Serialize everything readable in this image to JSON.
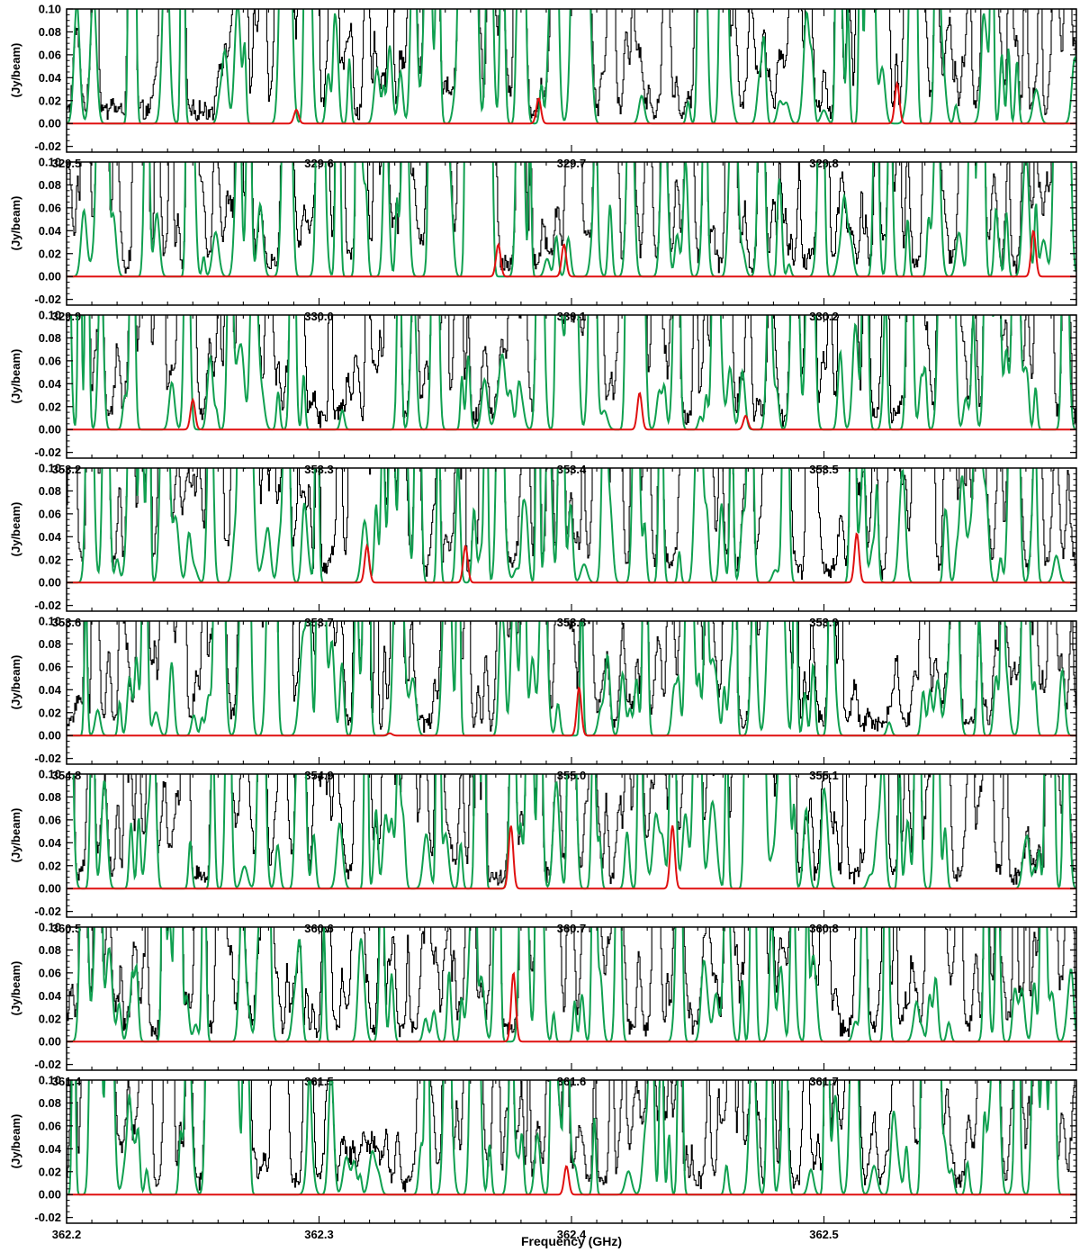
{
  "chart_data": {
    "type": "line",
    "xlabel": "Frequency (GHz)",
    "ylabel": "(Jy/beam)",
    "ylim": [
      -0.025,
      0.1
    ],
    "yticks": [
      -0.02,
      0.0,
      0.02,
      0.04,
      0.06,
      0.08,
      0.1
    ],
    "ytick_labels": [
      "-0.02",
      "0.00",
      "0.02",
      "0.04",
      "0.06",
      "0.08",
      "0.10"
    ],
    "colors": {
      "observed": "#000000",
      "full_model": "#10a050",
      "species_model": "#e01010"
    },
    "panels": [
      {
        "xlim": [
          329.5,
          329.9
        ],
        "xticks": [
          329.5,
          329.6,
          329.7,
          329.8
        ],
        "xtick_labels": [
          "329.5",
          "329.6",
          "329.7",
          "329.8"
        ],
        "red_lines": [
          [
            329.591,
            0.012
          ],
          [
            329.687,
            0.022
          ],
          [
            329.829,
            0.035
          ]
        ]
      },
      {
        "xlim": [
          329.9,
          330.3
        ],
        "xticks": [
          329.9,
          330.0,
          330.1,
          330.2
        ],
        "xtick_labels": [
          "329.9",
          "330.0",
          "330.1",
          "330.2"
        ],
        "red_lines": [
          [
            330.071,
            0.028
          ],
          [
            330.097,
            0.028
          ],
          [
            330.283,
            0.04
          ]
        ]
      },
      {
        "xlim": [
          353.2,
          353.6
        ],
        "xticks": [
          353.2,
          353.3,
          353.4,
          353.5
        ],
        "xtick_labels": [
          "353.2",
          "353.3",
          "353.4",
          "353.5"
        ],
        "red_lines": [
          [
            353.25,
            0.026
          ],
          [
            353.427,
            0.032
          ],
          [
            353.469,
            0.012
          ]
        ]
      },
      {
        "xlim": [
          353.6,
          354.0
        ],
        "xticks": [
          353.6,
          353.7,
          353.8,
          353.9
        ],
        "xtick_labels": [
          "353.6",
          "353.7",
          "353.8",
          "353.9"
        ],
        "red_lines": [
          [
            353.719,
            0.032
          ],
          [
            353.758,
            0.032
          ],
          [
            353.913,
            0.043
          ]
        ]
      },
      {
        "xlim": [
          354.8,
          355.2
        ],
        "xticks": [
          354.8,
          354.9,
          355.0,
          355.1
        ],
        "xtick_labels": [
          "354.8",
          "354.9",
          "355.0",
          "355.1"
        ],
        "red_lines": [
          [
            354.928,
            0.002
          ],
          [
            355.003,
            0.042
          ]
        ]
      },
      {
        "xlim": [
          360.5,
          360.9
        ],
        "xticks": [
          360.5,
          360.6,
          360.7,
          360.8
        ],
        "xtick_labels": [
          "360.5",
          "360.6",
          "360.7",
          "360.8"
        ],
        "red_lines": [
          [
            360.676,
            0.055
          ],
          [
            360.74,
            0.055
          ]
        ]
      },
      {
        "xlim": [
          361.4,
          361.8
        ],
        "xticks": [
          361.4,
          361.5,
          361.6,
          361.7
        ],
        "xtick_labels": [
          "361.4",
          "361.5",
          "361.6",
          "361.7"
        ],
        "red_lines": [
          [
            361.577,
            0.06
          ]
        ]
      },
      {
        "xlim": [
          362.2,
          362.6
        ],
        "xticks": [
          362.2,
          362.3,
          362.4,
          362.5
        ],
        "xtick_labels": [
          "362.2",
          "362.3",
          "362.4",
          "362.5"
        ],
        "red_lines": [
          [
            362.398,
            0.025
          ]
        ]
      }
    ]
  }
}
